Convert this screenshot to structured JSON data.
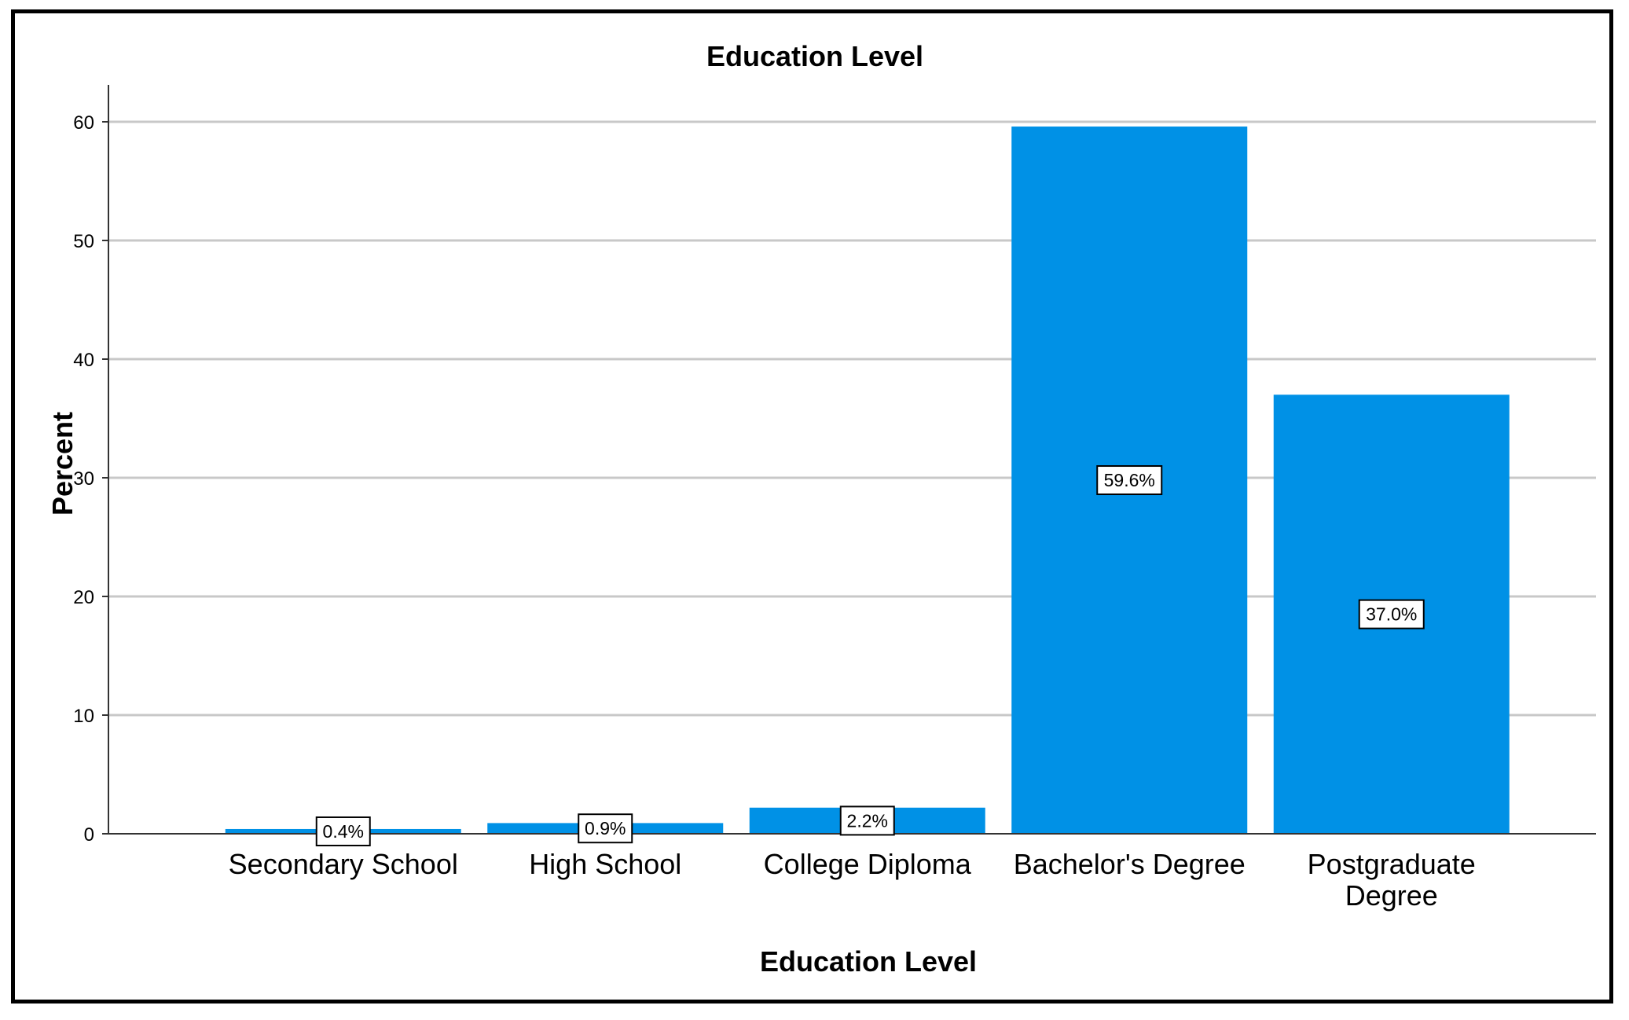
{
  "chart_data": {
    "type": "bar",
    "title": "Education Level",
    "xlabel": "Education Level",
    "ylabel": "Percent",
    "categories": [
      "Secondary School",
      "High School",
      "College Diploma",
      "Bachelor's Degree",
      "Postgraduate Degree"
    ],
    "category_lines": [
      [
        "Secondary School"
      ],
      [
        "High School"
      ],
      [
        "College Diploma"
      ],
      [
        "Bachelor's Degree"
      ],
      [
        "Postgraduate",
        "Degree"
      ]
    ],
    "values": [
      0.4,
      0.9,
      2.2,
      59.6,
      37.0
    ],
    "data_labels": [
      "0.4%",
      "0.9%",
      "2.2%",
      "59.6%",
      "37.0%"
    ],
    "ylim": [
      0,
      60
    ],
    "yticks": [
      0,
      10,
      20,
      30,
      40,
      50,
      60
    ],
    "ytick_labels": [
      "0",
      "10",
      "20",
      "30",
      "40",
      "50",
      "60"
    ],
    "grid": true,
    "legend": "none",
    "colors": {
      "bar": "#0091E6",
      "grid": "#C8C8C8",
      "axis": "#333333"
    }
  }
}
